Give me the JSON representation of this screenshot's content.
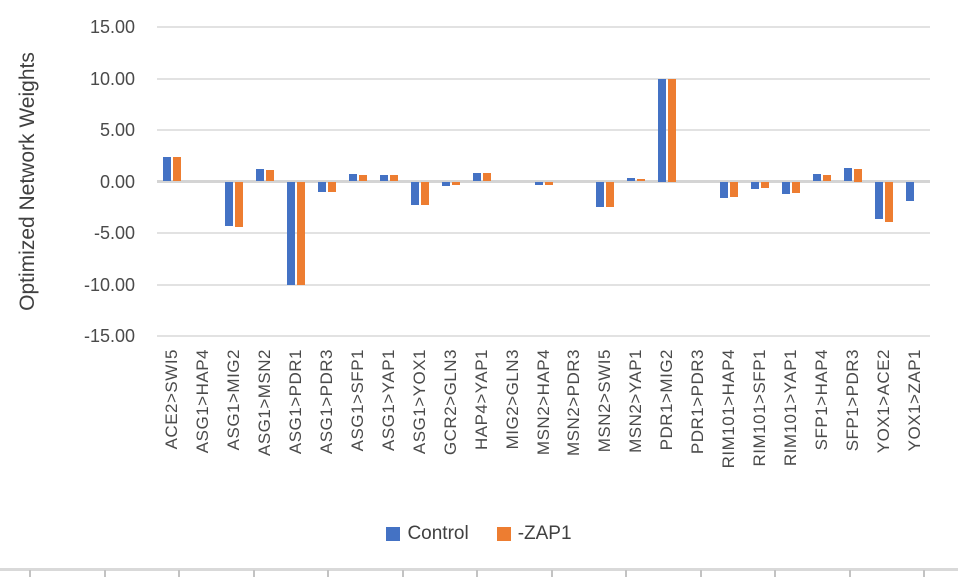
{
  "chart_data": {
    "type": "bar",
    "title": "",
    "xlabel": "",
    "ylabel": "Optimized Network Weights",
    "ylim": [
      -15,
      15
    ],
    "ytick_step": 5,
    "yticks": [
      "15.00",
      "10.00",
      "5.00",
      "0.00",
      "-5.00",
      "-10.00",
      "-15.00"
    ],
    "grid": true,
    "legend_position": "bottom",
    "categories": [
      "ACE2>SWI5",
      "ASG1>HAP4",
      "ASG1>MIG2",
      "ASG1>MSN2",
      "ASG1>PDR1",
      "ASG1>PDR3",
      "ASG1>SFP1",
      "ASG1>YAP1",
      "ASG1>YOX1",
      "GCR2>GLN3",
      "HAP4>YAP1",
      "MIG2>GLN3",
      "MSN2>HAP4",
      "MSN2>PDR3",
      "MSN2>SWI5",
      "MSN2>YAP1",
      "PDR1>MIG2",
      "PDR1>PDR3",
      "RIM101>HAP4",
      "RIM101>SFP1",
      "RIM101>YAP1",
      "SFP1>HAP4",
      "SFP1>PDR3",
      "YOX1>ACE2",
      "YOX1>ZAP1"
    ],
    "series": [
      {
        "name": "Control",
        "color": "#4472C4",
        "values": [
          2.4,
          0,
          -4.3,
          1.2,
          -10,
          -1.0,
          0.75,
          0.65,
          -2.3,
          -0.4,
          0.85,
          0,
          -0.35,
          0,
          -2.5,
          0.3,
          10,
          0,
          -1.6,
          -0.7,
          -1.2,
          0.75,
          1.3,
          -3.65,
          -1.9
        ]
      },
      {
        "name": "-ZAP1",
        "color": "#ED7D31",
        "values": [
          2.35,
          0,
          -4.4,
          1.1,
          -10,
          -1.05,
          0.65,
          0.6,
          -2.3,
          -0.3,
          0.8,
          0,
          -0.3,
          0,
          -2.5,
          0.25,
          10,
          0,
          -1.5,
          -0.65,
          -1.1,
          0.6,
          1.25,
          -3.9,
          0
        ]
      }
    ]
  },
  "legend": {
    "items": [
      {
        "label": "Control",
        "color": "#4472C4"
      },
      {
        "label": "-ZAP1",
        "color": "#ED7D31"
      }
    ]
  },
  "colors": {
    "gridline": "#e2e2e2",
    "zero_axis": "#d4d4d4",
    "text": "#595959",
    "worksheet_edge": "#d9d9d9"
  }
}
